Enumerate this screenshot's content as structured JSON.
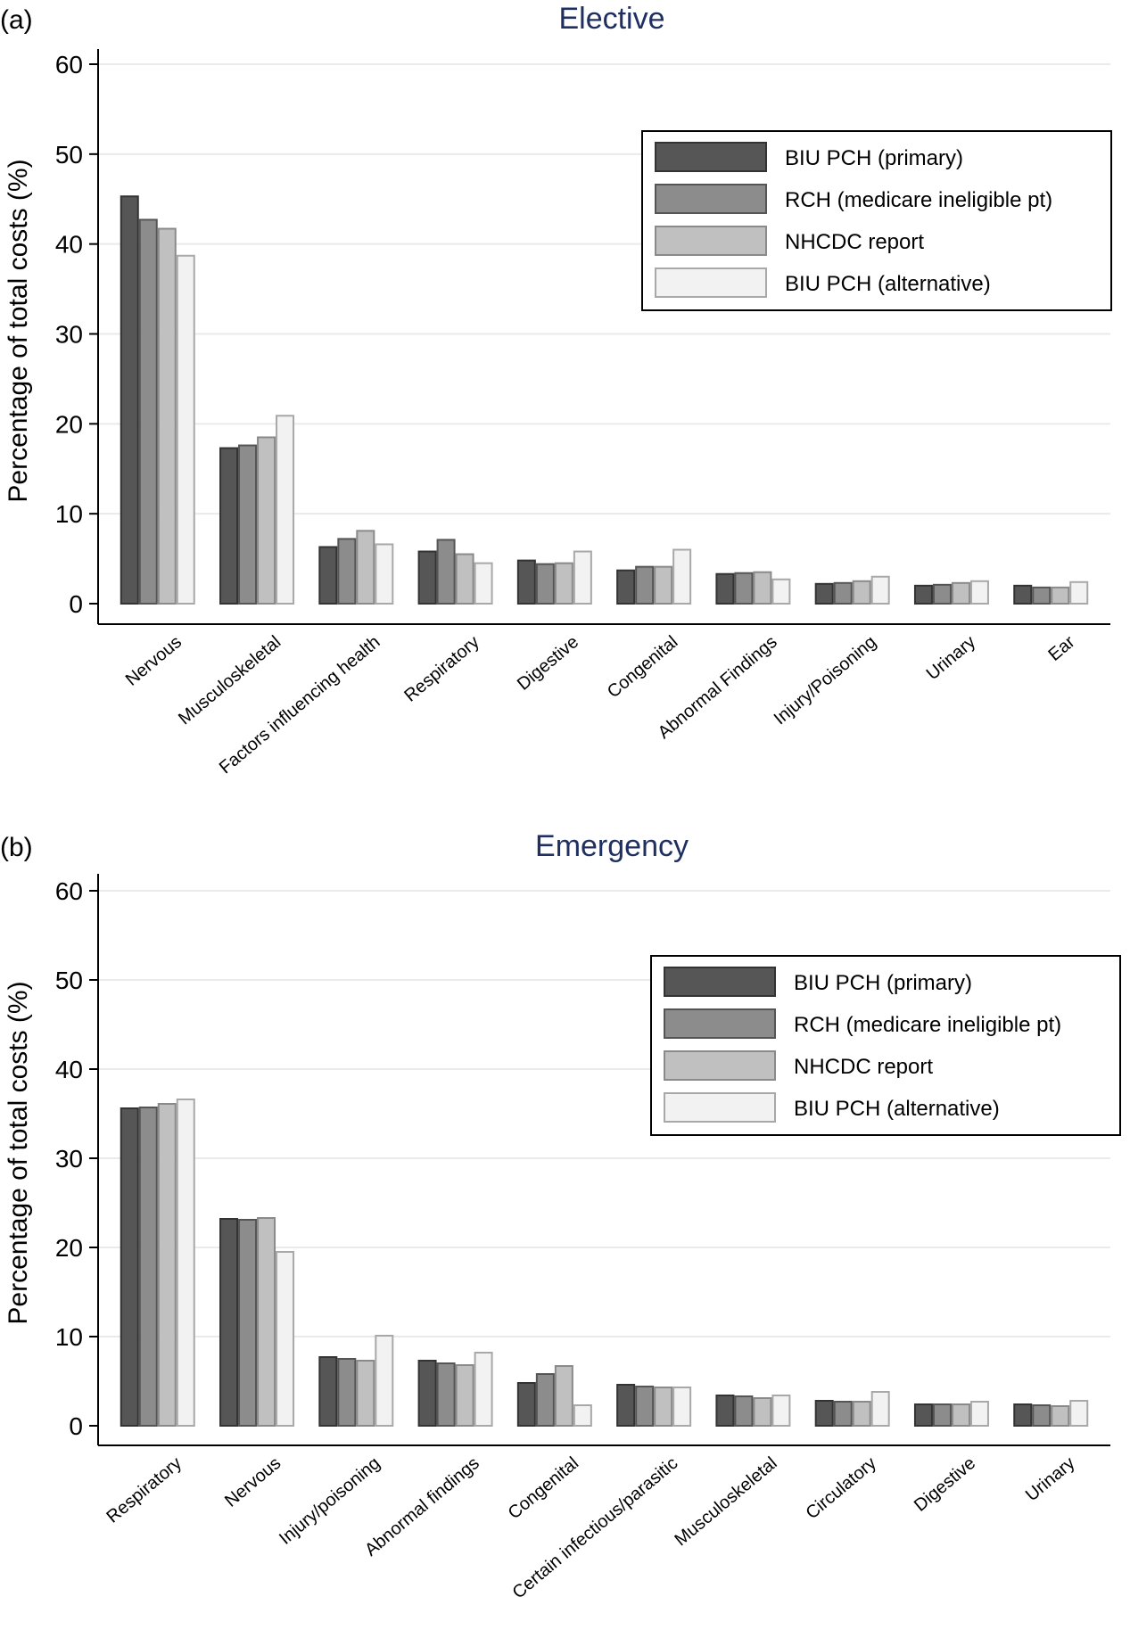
{
  "colors": {
    "series": [
      "#565656",
      "#8c8c8c",
      "#c0c0c0",
      "#f2f2f2"
    ],
    "bar_stroke": [
      "#333333",
      "#555555",
      "#8a8a8a",
      "#a8a8a8"
    ],
    "title": "#1f3060",
    "grid": "#eaeaea"
  },
  "chart_data": [
    {
      "panel": "(a)",
      "type": "bar",
      "title": "Elective",
      "ylabel": "Percentage of total costs (%)",
      "ylim": [
        0,
        60
      ],
      "yticks": [
        0,
        10,
        20,
        30,
        40,
        50,
        60
      ],
      "grid": true,
      "legend": "top-right",
      "categories": [
        "Nervous",
        "Musculoskeletal",
        "Factors influencing health",
        "Respiratory",
        "Digestive",
        "Congenital",
        "Abnormal Findings",
        "Injury/Poisoning",
        "Urinary",
        "Ear"
      ],
      "series": [
        {
          "name": "BIU PCH (primary)",
          "values": [
            45.3,
            17.3,
            6.3,
            5.8,
            4.8,
            3.7,
            3.3,
            2.2,
            2.0,
            2.0
          ]
        },
        {
          "name": "RCH (medicare ineligible pt)",
          "values": [
            42.7,
            17.6,
            7.2,
            7.1,
            4.4,
            4.1,
            3.4,
            2.3,
            2.1,
            1.8
          ]
        },
        {
          "name": "NHCDC report",
          "values": [
            41.7,
            18.5,
            8.1,
            5.5,
            4.5,
            4.1,
            3.5,
            2.5,
            2.3,
            1.8
          ]
        },
        {
          "name": "BIU PCH (alternative)",
          "values": [
            38.7,
            20.9,
            6.6,
            4.5,
            5.8,
            6.0,
            2.7,
            3.0,
            2.5,
            2.4
          ]
        }
      ]
    },
    {
      "panel": "(b)",
      "type": "bar",
      "title": "Emergency",
      "ylabel": "Percentage of total costs (%)",
      "ylim": [
        0,
        60
      ],
      "yticks": [
        0,
        10,
        20,
        30,
        40,
        50,
        60
      ],
      "grid": true,
      "legend": "top-right",
      "categories": [
        "Respiratory",
        "Nervous",
        "Injury/poisoning",
        "Abnormal findings",
        "Congenital",
        "Certain infectious/parasitic",
        "Musculoskeletal",
        "Circulatory",
        "Digestive",
        "Urinary"
      ],
      "series": [
        {
          "name": "BIU PCH (primary)",
          "values": [
            35.6,
            23.2,
            7.7,
            7.3,
            4.8,
            4.6,
            3.4,
            2.8,
            2.4,
            2.4
          ]
        },
        {
          "name": "RCH (medicare ineligible pt)",
          "values": [
            35.7,
            23.1,
            7.5,
            7.0,
            5.8,
            4.4,
            3.3,
            2.7,
            2.4,
            2.3
          ]
        },
        {
          "name": "NHCDC report",
          "values": [
            36.1,
            23.3,
            7.3,
            6.8,
            6.7,
            4.3,
            3.1,
            2.7,
            2.4,
            2.2
          ]
        },
        {
          "name": "BIU PCH (alternative)",
          "values": [
            36.6,
            19.5,
            10.1,
            8.2,
            2.3,
            4.3,
            3.4,
            3.8,
            2.7,
            2.8
          ]
        }
      ]
    }
  ]
}
